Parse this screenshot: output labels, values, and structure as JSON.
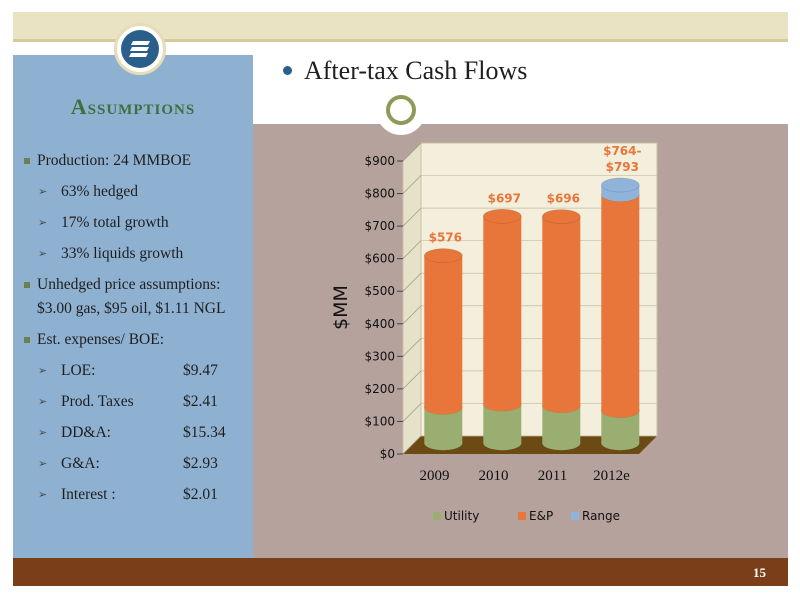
{
  "page": {
    "number": "15"
  },
  "title": "After-tax Cash Flows",
  "sidebar": {
    "heading": "Assumptions",
    "bullets": [
      {
        "level": 1,
        "text": "Production: 24 MMBOE"
      },
      {
        "level": 2,
        "text": "63% hedged"
      },
      {
        "level": 2,
        "text": "17% total growth"
      },
      {
        "level": 2,
        "text": "33% liquids growth"
      },
      {
        "level": 1,
        "text": "Unhedged price assumptions: $3.00 gas, $95 oil, $1.11 NGL"
      },
      {
        "level": 1,
        "text": "Est. expenses/ BOE:"
      },
      {
        "level": 2,
        "text": "LOE:",
        "value": "$9.47"
      },
      {
        "level": 2,
        "text": "Prod. Taxes",
        "value": "$2.41"
      },
      {
        "level": 2,
        "text": "DD&A:",
        "value": "$15.34"
      },
      {
        "level": 2,
        "text": "G&A:",
        "value": "$2.93"
      },
      {
        "level": 2,
        "text": "Interest :",
        "value": "$2.01"
      }
    ]
  },
  "chart_data": {
    "type": "bar",
    "stacked": true,
    "style": "3d-cylinder",
    "categories": [
      "2009",
      "2010",
      "2011",
      "2012e"
    ],
    "series": [
      {
        "name": "Utility",
        "color": "#9bae72",
        "values": [
          110,
          120,
          115,
          100
        ]
      },
      {
        "name": "E&P",
        "color": "#e8763a",
        "values": [
          466,
          577,
          581,
          664
        ]
      },
      {
        "name": "Range",
        "color": "#8fb3d9",
        "values": [
          0,
          0,
          0,
          29
        ]
      }
    ],
    "data_labels": [
      "$576",
      "$697",
      "$696",
      "$764-\n$793"
    ],
    "ylabel": "$MM",
    "ylim": [
      0,
      900
    ],
    "yticks": [
      "$0",
      "$100",
      "$200",
      "$300",
      "$400",
      "$500",
      "$600",
      "$700",
      "$800",
      "$900"
    ],
    "legend_position": "bottom",
    "colors": {
      "label": "#e8763a",
      "wall": "#f3efdc",
      "floor": "#6b4a14"
    }
  }
}
